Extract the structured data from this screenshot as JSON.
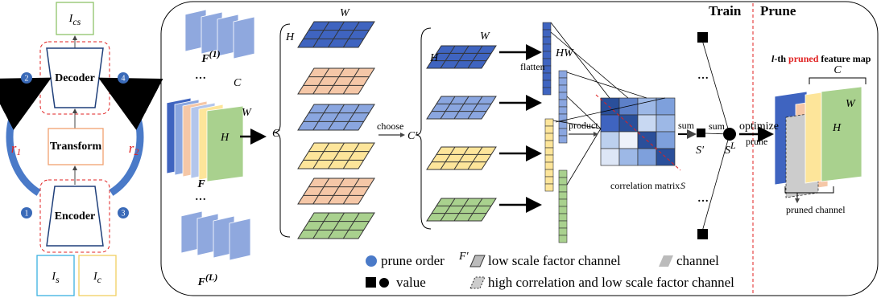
{
  "left_panel": {
    "output": {
      "symbol": "I",
      "subscript": "cs"
    },
    "decoder": "Decoder",
    "transform": "Transform",
    "encoder": "Encoder",
    "input_style": {
      "symbol": "I",
      "subscript": "s"
    },
    "input_content": {
      "symbol": "I",
      "subscript": "c"
    },
    "residuals": [
      {
        "symbol": "r",
        "subscript": "1"
      },
      {
        "symbol": "r",
        "subscript": "2"
      }
    ],
    "order_markers": [
      1,
      2,
      3,
      4
    ]
  },
  "feature_maps": {
    "first": {
      "symbol": "F",
      "superscript": "(1)"
    },
    "middle": "F",
    "last": {
      "symbol": "F",
      "superscript": "(L)"
    },
    "ellipsis": "…",
    "channel": "C",
    "width": "W",
    "height": "H"
  },
  "channel_split": {
    "channels": "C",
    "width": "W",
    "height": "H"
  },
  "choose": {
    "label": "choose",
    "channels": "C′",
    "width": "W",
    "height": "H",
    "chosen": "F′"
  },
  "flatten": {
    "label": "flatten",
    "size": "HW"
  },
  "correlation": {
    "product": "product",
    "label": "correlation matrix",
    "symbol": "S",
    "sum": "sum",
    "result": "S′"
  },
  "aggregation": {
    "sum": "sum",
    "result": {
      "symbol": "S",
      "superscript": "L"
    },
    "ellipsis": "…",
    "optimize": "optimize",
    "prune": "prune"
  },
  "phases": {
    "train": "Train",
    "prune": "Prune"
  },
  "pruned_map": {
    "prefix": "l",
    "middle": "-th ",
    "highlight": "pruned",
    "suffix": " feature map",
    "channel": "C",
    "width": "W",
    "height": "H",
    "pruned_channel": "pruned channel"
  },
  "legend": {
    "prune_order": "prune order",
    "low_scale": "low scale factor channel",
    "channel": "channel",
    "value": "value",
    "high_corr": "high correlation and low scale factor channel"
  }
}
